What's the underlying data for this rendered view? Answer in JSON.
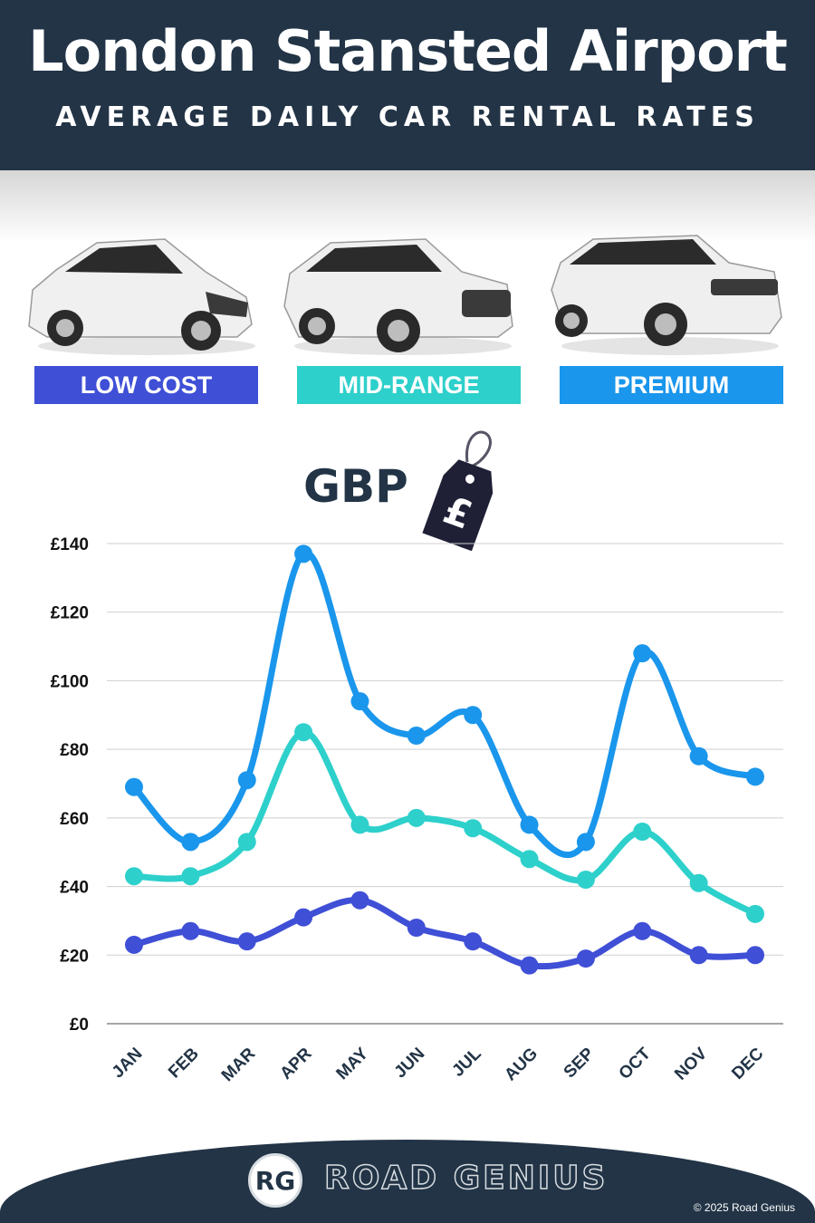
{
  "header": {
    "title": "London Stansted Airport",
    "subtitle": "AVERAGE DAILY CAR RENTAL RATES"
  },
  "categories": [
    {
      "label": "LOW COST",
      "color": "#3f4fd6",
      "car_icon": "hatchback-car-icon"
    },
    {
      "label": "MID-RANGE",
      "color": "#2ed0cb",
      "car_icon": "suv-car-icon"
    },
    {
      "label": "PREMIUM",
      "color": "#1a96ec",
      "car_icon": "luxury-suv-car-icon"
    }
  ],
  "currency": {
    "label": "GBP",
    "symbol": "£"
  },
  "chart_data": {
    "type": "line",
    "categories": [
      "JAN",
      "FEB",
      "MAR",
      "APR",
      "MAY",
      "JUN",
      "JUL",
      "AUG",
      "SEP",
      "OCT",
      "NOV",
      "DEC"
    ],
    "series": [
      {
        "name": "PREMIUM",
        "color": "#1a96ec",
        "values": [
          69,
          53,
          71,
          137,
          94,
          84,
          90,
          58,
          53,
          108,
          78,
          72
        ]
      },
      {
        "name": "MID-RANGE",
        "color": "#2ed0cb",
        "values": [
          43,
          43,
          53,
          85,
          58,
          60,
          57,
          48,
          42,
          56,
          41,
          32
        ]
      },
      {
        "name": "LOW COST",
        "color": "#3f4fd6",
        "values": [
          23,
          27,
          24,
          31,
          36,
          28,
          24,
          17,
          19,
          27,
          20,
          20
        ]
      }
    ],
    "yticks": [
      "£0",
      "£20",
      "£40",
      "£60",
      "£80",
      "£100",
      "£120",
      "£140"
    ],
    "ylim": [
      0,
      140
    ],
    "grid": true
  },
  "footer": {
    "logo_initials": "RG",
    "brand": "ROAD GENIUS",
    "copyright": "© 2025 Road Genius"
  }
}
